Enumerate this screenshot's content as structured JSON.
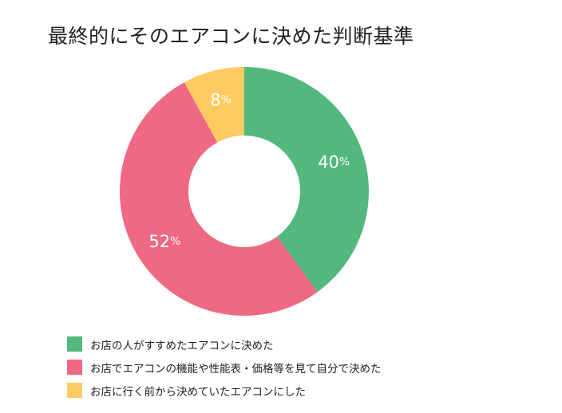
{
  "chart_data": {
    "type": "pie",
    "title": "最終的にそのエアコンに決めた判断基準",
    "donut": true,
    "start_angle": "top",
    "direction": "clockwise",
    "legend_position": "bottom-left",
    "labels": [
      "40%",
      "52%",
      "8%"
    ],
    "categories": [
      "お店の人がすすめたエアコンに決めた",
      "お店でエアコンの機能や性能表・価格等を見て自分で決めた",
      "お店に行く前から決めていたエアコンにした"
    ],
    "values": [
      40,
      52,
      8
    ],
    "colors": [
      "#52b87d",
      "#ef6984",
      "#fdcb62"
    ]
  }
}
